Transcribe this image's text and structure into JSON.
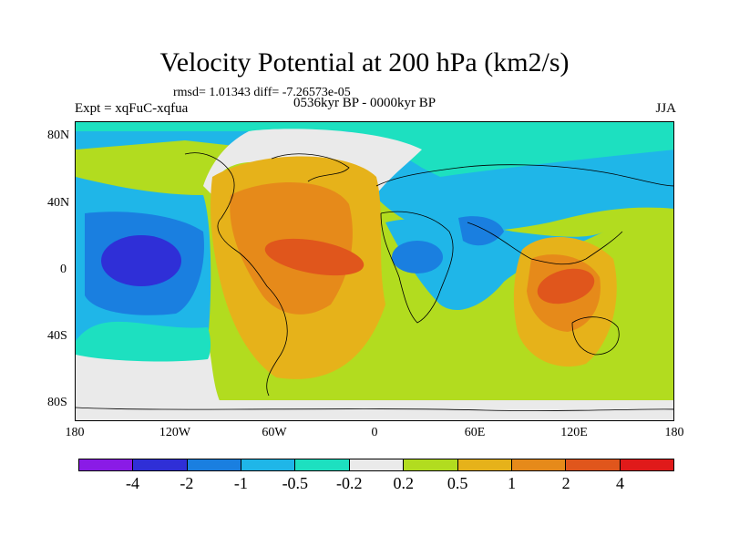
{
  "title": "Velocity Potential at 200 hPa (km2/s)",
  "stats": "rmsd= 1.01343 diff= -7.26573e-05",
  "expt": "Expt = xqFuC-xqfua",
  "period": "0536kyr BP - 0000kyr BP",
  "season": "JJA",
  "map": {
    "y_ticks": [
      "80N",
      "40N",
      "0",
      "40S",
      "80S"
    ],
    "x_ticks": [
      "180",
      "120W",
      "60W",
      "0",
      "60E",
      "120E",
      "180"
    ]
  },
  "colorbar": {
    "levels": [
      "-4",
      "-2",
      "-1",
      "-0.5",
      "-0.2",
      "0.2",
      "0.5",
      "1",
      "2",
      "4"
    ],
    "colors": [
      "#8a1be6",
      "#2f2fd7",
      "#1a7fe0",
      "#1fb6e8",
      "#1de0c0",
      "#eaeaea",
      "#b2dc1f",
      "#e6b21a",
      "#e68a1a",
      "#e0561c",
      "#e01a1a"
    ]
  }
}
